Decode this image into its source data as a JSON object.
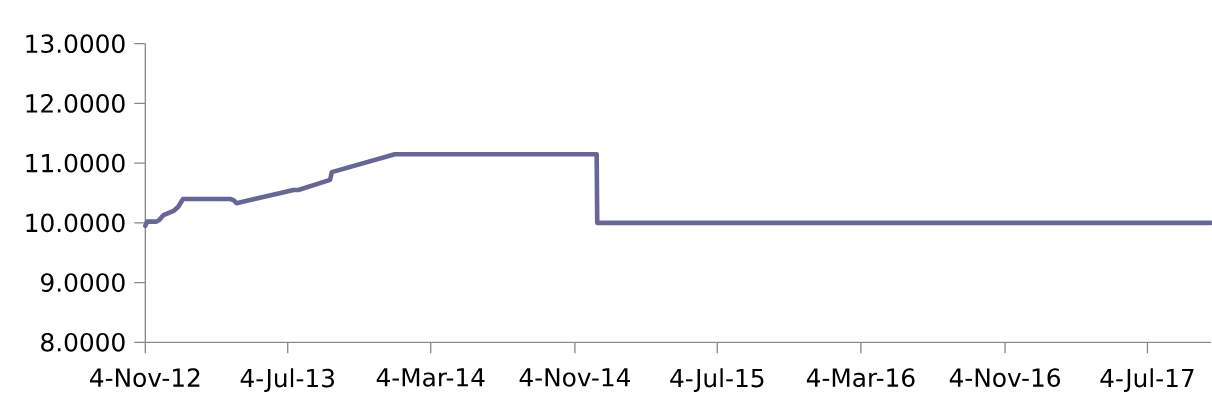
{
  "chart_data": {
    "type": "line",
    "x": [
      "2012-11-04",
      "2012-11-07",
      "2012-11-23",
      "2012-11-28",
      "2012-12-05",
      "2012-12-22",
      "2012-12-30",
      "2013-01-07",
      "2013-03-28",
      "2013-04-03",
      "2013-04-08",
      "2013-07-14",
      "2013-07-22",
      "2013-09-14",
      "2013-09-17",
      "2014-01-02",
      "2014-12-11",
      "2014-12-12",
      "2017-10-20"
    ],
    "series": [
      {
        "color": "#666699",
        "values": [
          9.95,
          10.02,
          10.02,
          10.05,
          10.13,
          10.2,
          10.27,
          10.4,
          10.4,
          10.38,
          10.33,
          10.55,
          10.55,
          10.72,
          10.85,
          11.15,
          11.15,
          10.0,
          10.0
        ]
      }
    ],
    "xlim": [
      "2012-11-04",
      "2017-10-20"
    ],
    "xticks": [
      {
        "value": "2012-11-04",
        "label": "4-Nov-12"
      },
      {
        "value": "2013-07-04",
        "label": "4-Jul-13"
      },
      {
        "value": "2014-03-04",
        "label": "4-Mar-14"
      },
      {
        "value": "2014-11-04",
        "label": "4-Nov-14"
      },
      {
        "value": "2015-07-04",
        "label": "4-Jul-15"
      },
      {
        "value": "2016-03-04",
        "label": "4-Mar-16"
      },
      {
        "value": "2016-11-04",
        "label": "4-Nov-16"
      },
      {
        "value": "2017-07-04",
        "label": "4-Jul-17"
      }
    ],
    "ylim": [
      8,
      13
    ],
    "yticks": [
      {
        "value": 8,
        "label": "8.0000"
      },
      {
        "value": 9,
        "label": "9.0000"
      },
      {
        "value": 10,
        "label": "10.0000"
      },
      {
        "value": 11,
        "label": "11.0000"
      },
      {
        "value": 12,
        "label": "12.0000"
      },
      {
        "value": 13,
        "label": "13.0000"
      }
    ],
    "line_style": "solid"
  }
}
